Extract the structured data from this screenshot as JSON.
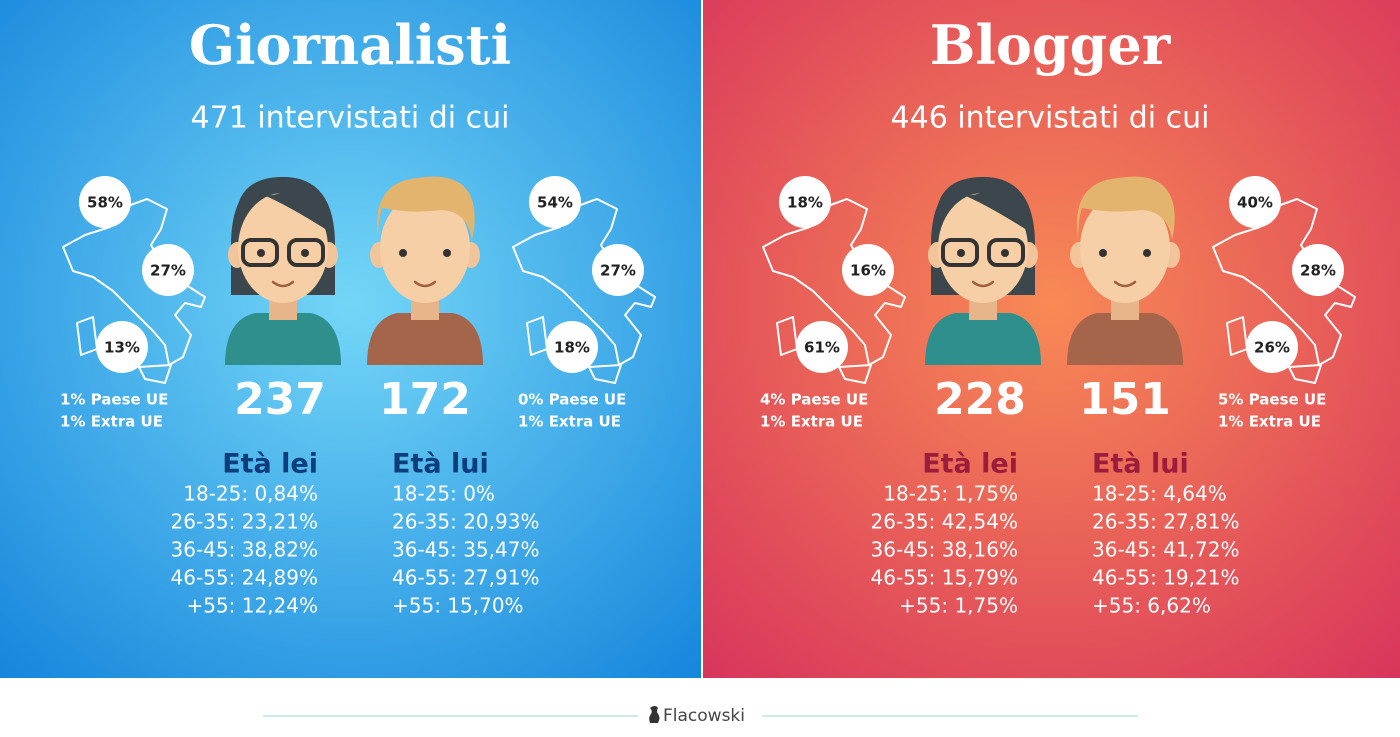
{
  "panels": [
    {
      "title": "Giornalisti",
      "subtitle": "471 intervistati di cui",
      "female": {
        "count": "237",
        "map": [
          "58%",
          "27%",
          "13%"
        ],
        "notes": [
          "1% Paese UE",
          "1% Extra UE"
        ],
        "age_title": "Età lei",
        "ages": [
          "18-25: 0,84%",
          "26-35: 23,21%",
          "36-45: 38,82%",
          "46-55: 24,89%",
          "+55: 12,24%"
        ]
      },
      "male": {
        "count": "172",
        "map": [
          "54%",
          "27%",
          "18%"
        ],
        "notes": [
          "0% Paese UE",
          "1% Extra UE"
        ],
        "age_title": "Età lui",
        "ages": [
          "18-25: 0%",
          "26-35: 20,93%",
          "36-45: 35,47%",
          "46-55: 27,91%",
          "+55: 15,70%"
        ]
      }
    },
    {
      "title": "Blogger",
      "subtitle": "446 intervistati di cui",
      "female": {
        "count": "228",
        "map": [
          "18%",
          "16%",
          "61%"
        ],
        "notes": [
          "4% Paese UE",
          "1% Extra UE"
        ],
        "age_title": "Età lei",
        "ages": [
          "18-25: 1,75%",
          "26-35: 42,54%",
          "36-45: 38,16%",
          "46-55: 15,79%",
          "+55: 1,75%"
        ]
      },
      "male": {
        "count": "151",
        "map": [
          "40%",
          "28%",
          "26%"
        ],
        "notes": [
          "5% Paese UE",
          "1% Extra UE"
        ],
        "age_title": "Età lui",
        "ages": [
          "18-25: 4,64%",
          "26-35: 27,81%",
          "36-45: 41,72%",
          "46-55: 19,21%",
          "+55: 6,62%"
        ]
      }
    }
  ],
  "footer": {
    "brand": "Flacowski"
  }
}
